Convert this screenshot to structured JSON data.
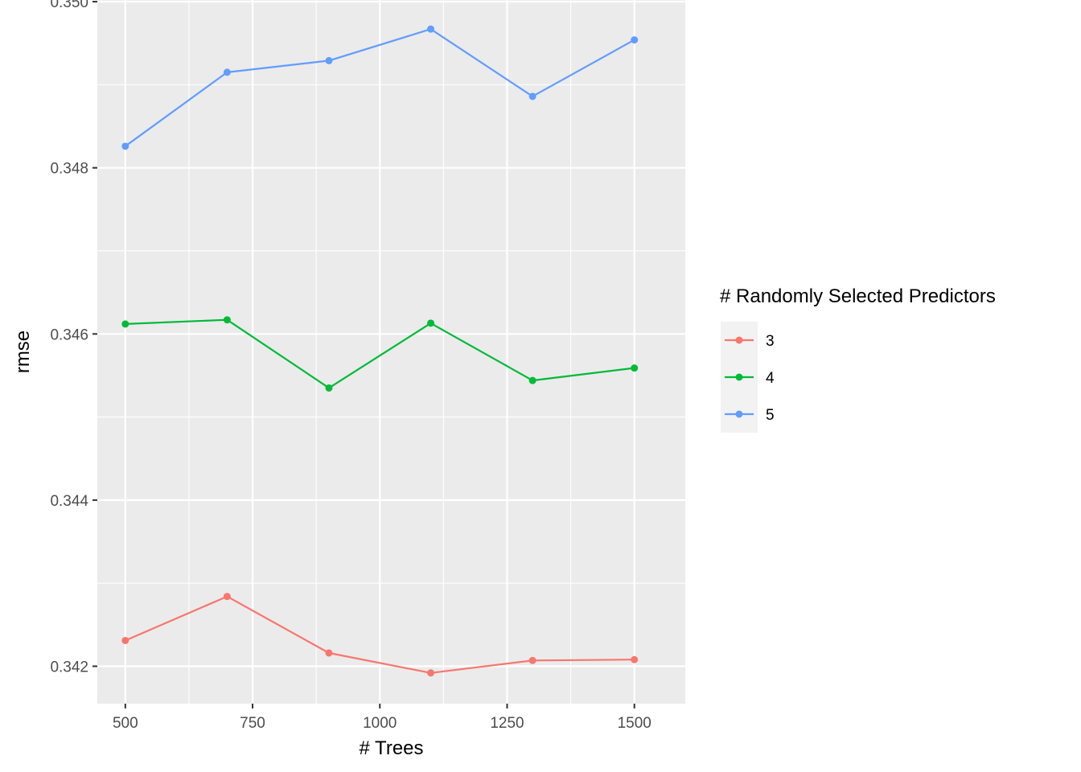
{
  "chart_data": {
    "type": "line",
    "xlabel": "# Trees",
    "ylabel": "rmse",
    "x": [
      500,
      700,
      900,
      1100,
      1300,
      1500
    ],
    "xlim": [
      445,
      1600
    ],
    "ylim": [
      0.34155,
      0.35002
    ],
    "xticks": [
      500,
      750,
      1000,
      1250,
      1500
    ],
    "xtick_labels": [
      "500",
      "750",
      "1000",
      "1250",
      "1500"
    ],
    "yticks": [
      0.342,
      0.344,
      0.346,
      0.348,
      0.35
    ],
    "ytick_labels": [
      "0.342",
      "0.344",
      "0.346",
      "0.348",
      "0.350"
    ],
    "grid": true,
    "legend": {
      "title": "# Randomly Selected Predictors",
      "position": "right"
    },
    "series": [
      {
        "name": "3",
        "color": "#F8766D",
        "values": [
          0.34231,
          0.34284,
          0.34216,
          0.34192,
          0.34207,
          0.34208
        ]
      },
      {
        "name": "4",
        "color": "#00BA38",
        "values": [
          0.34612,
          0.34617,
          0.34535,
          0.34613,
          0.34544,
          0.34559
        ]
      },
      {
        "name": "5",
        "color": "#619CFF",
        "values": [
          0.34826,
          0.34915,
          0.34929,
          0.34967,
          0.34886,
          0.34954
        ]
      }
    ]
  }
}
